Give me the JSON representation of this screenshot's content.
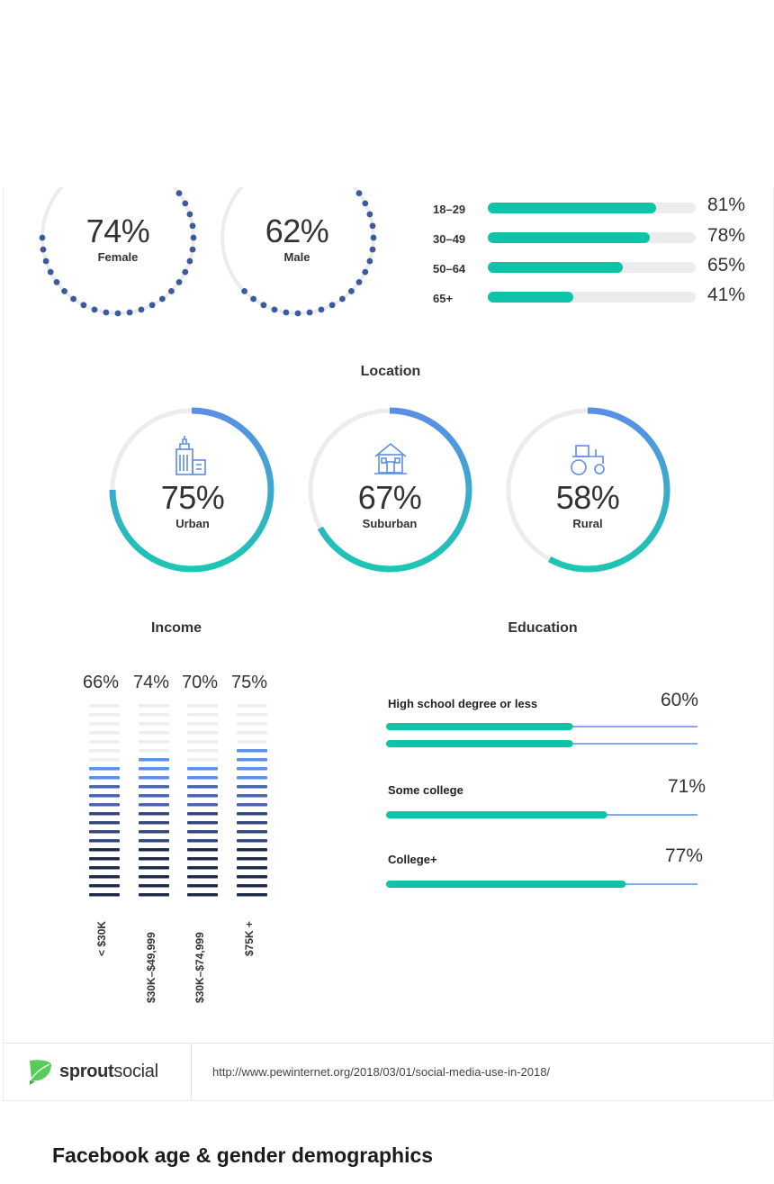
{
  "gender": [
    {
      "pct": "74%",
      "label": "Female",
      "value": 74
    },
    {
      "pct": "62%",
      "label": "Male",
      "value": 62
    }
  ],
  "age": [
    {
      "label": "18–29",
      "pct": "81%",
      "value": 81
    },
    {
      "label": "30–49",
      "pct": "78%",
      "value": 78
    },
    {
      "label": "50–64",
      "pct": "65%",
      "value": 65
    },
    {
      "label": "65+",
      "pct": "41%",
      "value": 41
    }
  ],
  "location": {
    "title": "Location",
    "items": [
      {
        "pct": "75%",
        "label": "Urban",
        "value": 75,
        "icon": "building-icon"
      },
      {
        "pct": "67%",
        "label": "Suburban",
        "value": 67,
        "icon": "house-icon"
      },
      {
        "pct": "58%",
        "label": "Rural",
        "value": 58,
        "icon": "tractor-icon"
      }
    ]
  },
  "income": {
    "title": "Income",
    "items": [
      {
        "pct": "66%",
        "label": "< $30K",
        "value": 66
      },
      {
        "pct": "74%",
        "label": "$30K–$49,999",
        "value": 74
      },
      {
        "pct": "70%",
        "label": "$30K–$74,999",
        "value": 70
      },
      {
        "pct": "75%",
        "label": "$75K +",
        "value": 75
      }
    ]
  },
  "education": {
    "title": "Education",
    "items": [
      {
        "label": "High school degree or less",
        "pct": "60%",
        "value": 60
      },
      {
        "label": "Some college",
        "pct": "71%",
        "value": 71
      },
      {
        "label": "College+",
        "pct": "77%",
        "value": 77
      }
    ]
  },
  "footer": {
    "brand_a": "sprout",
    "brand_b": "social",
    "url": "http://www.pewinternet.org/2018/03/01/social-media-use-in-2018/"
  },
  "heading": "Facebook age & gender demographics",
  "colors": {
    "teal": "#0fc3a8",
    "navy_dot": "#3a5a9c",
    "ring_track": "#ececec",
    "ring_blue": "#5b8ee6",
    "ring_teal": "#1cc6b3"
  },
  "chart_data": [
    {
      "type": "pie",
      "categories": [
        "Female",
        "Male"
      ],
      "values": [
        74,
        62
      ]
    },
    {
      "type": "bar",
      "categories": [
        "18–29",
        "30–49",
        "50–64",
        "65+"
      ],
      "values": [
        81,
        78,
        65,
        41
      ],
      "ylim": [
        0,
        100
      ]
    },
    {
      "type": "pie",
      "title": "Location",
      "categories": [
        "Urban",
        "Suburban",
        "Rural"
      ],
      "values": [
        75,
        67,
        58
      ]
    },
    {
      "type": "bar",
      "title": "Income",
      "categories": [
        "< $30K",
        "$30K–$49,999",
        "$30K–$74,999",
        "$75K +"
      ],
      "values": [
        66,
        74,
        70,
        75
      ],
      "ylim": [
        0,
        100
      ]
    },
    {
      "type": "bar",
      "title": "Education",
      "categories": [
        "High school degree or less",
        "Some college",
        "College+"
      ],
      "values": [
        60,
        71,
        77
      ],
      "ylim": [
        0,
        100
      ]
    }
  ]
}
